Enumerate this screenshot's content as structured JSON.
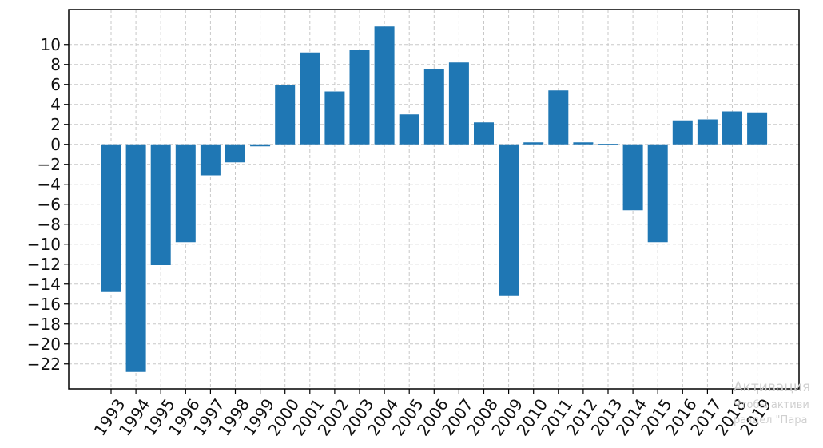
{
  "chart_data": {
    "type": "bar",
    "title": "",
    "xlabel": "",
    "ylabel": "",
    "categories": [
      "1993",
      "1994",
      "1995",
      "1996",
      "1997",
      "1998",
      "1999",
      "2000",
      "2001",
      "2002",
      "2003",
      "2004",
      "2005",
      "2006",
      "2007",
      "2008",
      "2009",
      "2010",
      "2011",
      "2012",
      "2013",
      "2014",
      "2015",
      "2016",
      "2017",
      "2018",
      "2019"
    ],
    "values": [
      -14.8,
      -22.8,
      -12.1,
      -9.8,
      -3.1,
      -1.8,
      -0.2,
      5.9,
      9.2,
      5.3,
      9.5,
      11.8,
      3.0,
      7.5,
      8.2,
      2.2,
      -15.2,
      0.2,
      5.4,
      0.2,
      0.0,
      -6.6,
      -9.8,
      2.4,
      2.5,
      3.3,
      3.2
    ],
    "ylim": [
      -24.5,
      13.5
    ],
    "yticks": [
      10,
      8,
      6,
      4,
      2,
      0,
      -2,
      -4,
      -6,
      -8,
      -10,
      -12,
      -14,
      -16,
      -18,
      -20,
      -22
    ],
    "grid": true,
    "bar_color": "#1f77b4"
  },
  "watermark": {
    "line1": "Активация",
    "line2": "Чтобы активи",
    "line3": "раздел \"Пара"
  }
}
